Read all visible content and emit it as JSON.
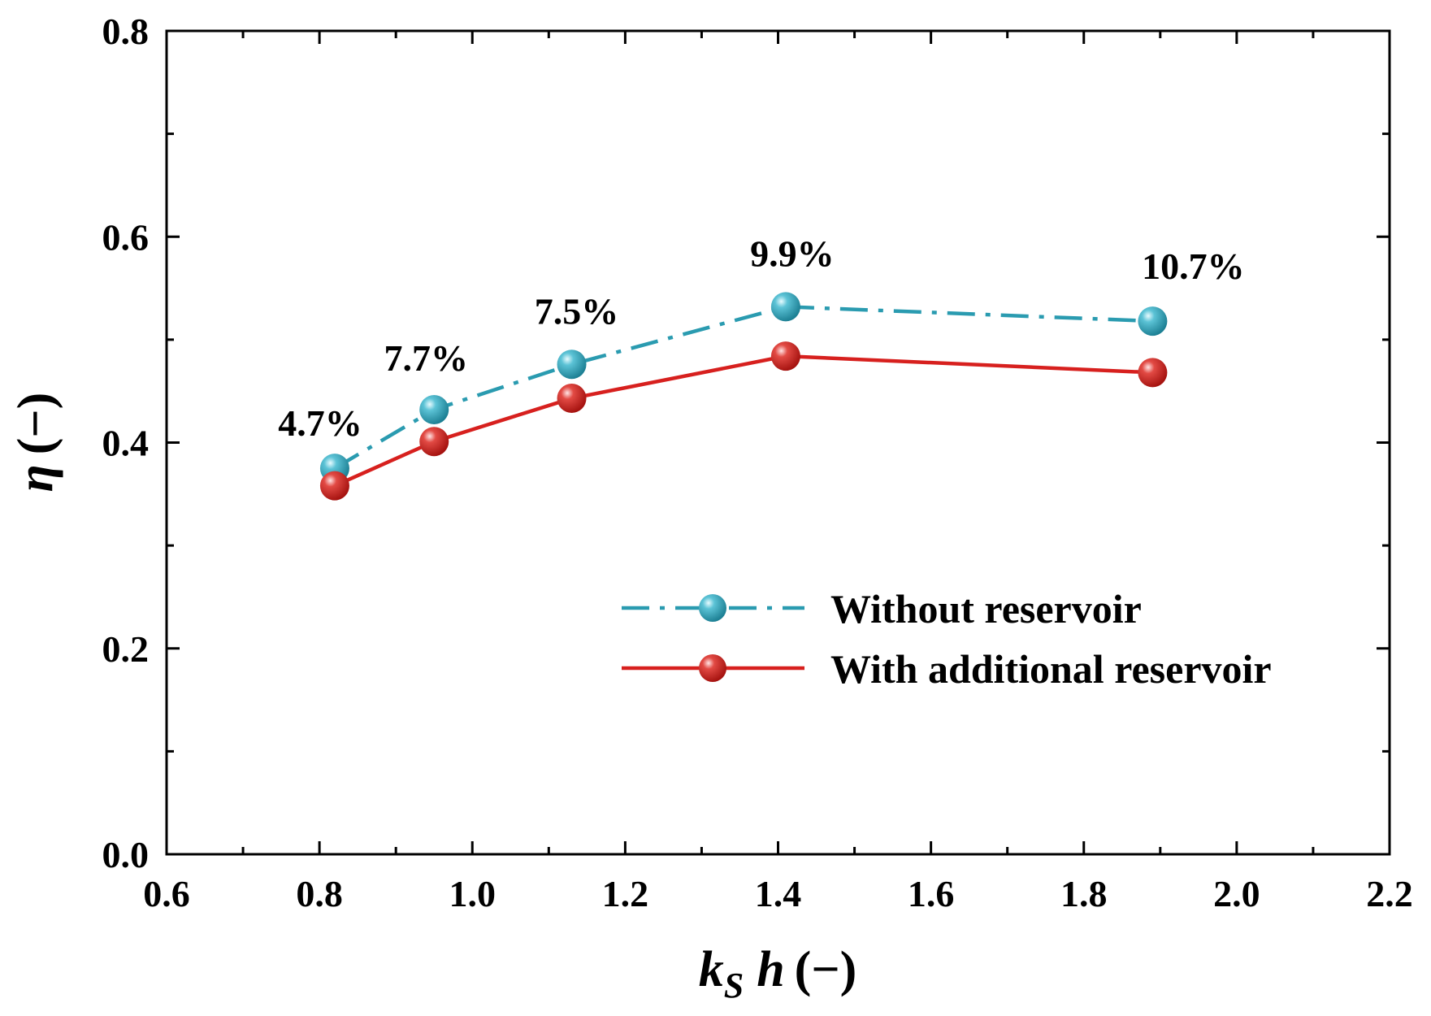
{
  "chart_data": {
    "type": "line",
    "title": "",
    "xlabel": {
      "main": "k",
      "sub": "S",
      "var": "h",
      "unit": "(−)"
    },
    "ylabel": {
      "var": "η",
      "unit": "(−)"
    },
    "xlim": [
      0.6,
      2.2
    ],
    "ylim": [
      0.0,
      0.8
    ],
    "xticks": [
      "0.6",
      "0.8",
      "1.0",
      "1.2",
      "1.4",
      "1.6",
      "1.8",
      "2.0",
      "2.2"
    ],
    "yticks": [
      "0.0",
      "0.2",
      "0.4",
      "0.6",
      "0.8"
    ],
    "xtick_values": [
      0.6,
      0.8,
      1.0,
      1.2,
      1.4,
      1.6,
      1.8,
      2.0,
      2.2
    ],
    "ytick_values": [
      0.0,
      0.2,
      0.4,
      0.6,
      0.8
    ],
    "x": [
      0.82,
      0.95,
      1.13,
      1.41,
      1.89
    ],
    "series": [
      {
        "name": "Without reservoir",
        "values": [
          0.375,
          0.432,
          0.476,
          0.532,
          0.518
        ],
        "color": "#2a9bb0",
        "style": "dash-dot"
      },
      {
        "name": "With additional reservoir",
        "values": [
          0.358,
          0.401,
          0.443,
          0.484,
          0.468
        ],
        "color": "#d7201e",
        "style": "solid"
      }
    ],
    "annotations": [
      "4.7%",
      "7.7%",
      "7.5%",
      "9.9%",
      "10.7%"
    ],
    "legend_position": "bottom-right",
    "grid": false
  }
}
